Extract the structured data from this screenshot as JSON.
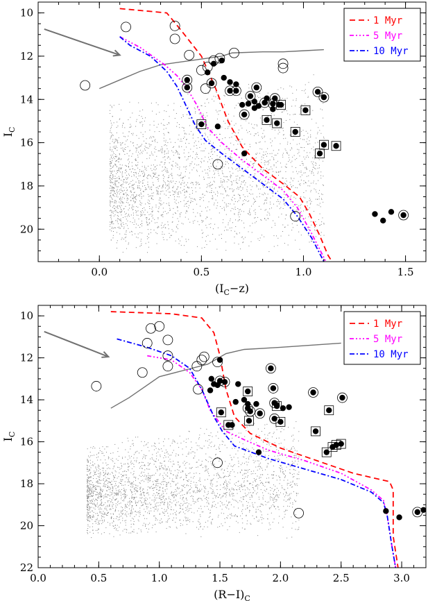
{
  "colors": {
    "model_1": "#ff0000",
    "model_5": "#ff00ff",
    "model_10": "#0000ff",
    "field": "#808080",
    "reddening": "#707070"
  },
  "chart_data": [
    {
      "type": "scatter",
      "xlabel": "(I",
      "xlabel_sub": "C",
      "xlabel_tail": "−z)",
      "ylabel": "I",
      "ylabel_sub": "C",
      "xlim": [
        -0.3,
        1.6
      ],
      "ylim": [
        21.5,
        9.5
      ],
      "xticks": [
        0.0,
        0.5,
        1.0,
        1.5
      ],
      "xtick_labels": [
        "0.0",
        "0.5",
        "1.0",
        "1.5"
      ],
      "yticks": [
        10,
        12,
        14,
        16,
        18,
        20
      ],
      "ytick_labels": [
        "10",
        "12",
        "14",
        "16",
        "18",
        "20"
      ],
      "legend_position": "top-right",
      "isochrones": [
        {
          "name": "1 Myr",
          "dash": "8,5",
          "points": [
            [
              0.1,
              9.8
            ],
            [
              0.33,
              10.0
            ],
            [
              0.4,
              10.8
            ],
            [
              0.5,
              12.0
            ],
            [
              0.57,
              13.5
            ],
            [
              0.63,
              15.0
            ],
            [
              0.7,
              16.2
            ],
            [
              0.8,
              17.2
            ],
            [
              0.9,
              17.9
            ],
            [
              0.98,
              18.5
            ],
            [
              1.03,
              19.3
            ],
            [
              1.08,
              20.3
            ],
            [
              1.12,
              21.2
            ],
            [
              1.14,
              21.5
            ]
          ]
        },
        {
          "name": "5 Myr",
          "dash": "6,3,2,3,2,3,2,3",
          "points": [
            [
              0.1,
              11.1
            ],
            [
              0.2,
              11.6
            ],
            [
              0.32,
              12.4
            ],
            [
              0.38,
              12.9
            ],
            [
              0.43,
              13.5
            ],
            [
              0.48,
              14.3
            ],
            [
              0.53,
              15.3
            ],
            [
              0.6,
              16.0
            ],
            [
              0.7,
              16.8
            ],
            [
              0.8,
              17.5
            ],
            [
              0.9,
              18.2
            ],
            [
              0.97,
              19.0
            ],
            [
              1.04,
              20.2
            ],
            [
              1.11,
              21.5
            ]
          ]
        },
        {
          "name": "10 Myr",
          "dash": "7,3,2,3",
          "points": [
            [
              0.1,
              11.1
            ],
            [
              0.15,
              11.5
            ],
            [
              0.25,
              12.0
            ],
            [
              0.33,
              12.7
            ],
            [
              0.38,
              13.4
            ],
            [
              0.42,
              14.2
            ],
            [
              0.47,
              15.2
            ],
            [
              0.52,
              15.9
            ],
            [
              0.6,
              16.5
            ],
            [
              0.7,
              17.2
            ],
            [
              0.8,
              17.9
            ],
            [
              0.9,
              18.6
            ],
            [
              0.97,
              19.4
            ],
            [
              1.04,
              20.4
            ],
            [
              1.1,
              21.5
            ]
          ]
        }
      ],
      "detection_limit": [
        [
          0.0,
          13.5
        ],
        [
          0.1,
          13.1
        ],
        [
          0.2,
          12.7
        ],
        [
          0.3,
          12.4
        ],
        [
          0.45,
          12.2
        ],
        [
          0.6,
          12.0
        ],
        [
          0.65,
          11.85
        ],
        [
          0.8,
          11.8
        ],
        [
          0.9,
          11.8
        ],
        [
          1.0,
          11.75
        ],
        [
          1.1,
          11.7
        ]
      ],
      "reddening_vector": {
        "from": [
          -0.27,
          10.75
        ],
        "to": [
          0.1,
          11.95
        ]
      },
      "field_region": {
        "x_min": 0.05,
        "x_max": 1.1,
        "y_min": 12.5,
        "y_max": 21.2
      },
      "open_circles": [
        [
          -0.07,
          13.35
        ],
        [
          0.13,
          10.65
        ],
        [
          0.37,
          10.6
        ],
        [
          0.37,
          11.2
        ],
        [
          0.44,
          11.95
        ],
        [
          0.5,
          12.65
        ],
        [
          0.53,
          12.5
        ],
        [
          0.52,
          13.5
        ],
        [
          0.56,
          12.2
        ],
        [
          0.59,
          12.1
        ],
        [
          0.66,
          11.85
        ],
        [
          0.9,
          12.35
        ],
        [
          0.9,
          12.55
        ],
        [
          0.58,
          17.0
        ],
        [
          0.96,
          19.4
        ]
      ],
      "filled_circles": [
        [
          0.56,
          12.35
        ],
        [
          0.6,
          12.2
        ],
        [
          0.53,
          12.75
        ],
        [
          0.61,
          13.0
        ],
        [
          0.64,
          13.2
        ],
        [
          0.67,
          13.3
        ],
        [
          0.7,
          14.25
        ],
        [
          0.73,
          14.2
        ],
        [
          0.76,
          14.1
        ],
        [
          0.78,
          14.3
        ],
        [
          0.76,
          14.4
        ],
        [
          0.85,
          14.45
        ],
        [
          0.82,
          13.95
        ],
        [
          0.88,
          14.25
        ],
        [
          0.58,
          15.25
        ],
        [
          0.71,
          16.5
        ],
        [
          1.35,
          19.3
        ],
        [
          1.39,
          19.6
        ],
        [
          1.43,
          19.2
        ]
      ],
      "circled_dots": [
        [
          0.43,
          13.1
        ],
        [
          0.43,
          13.45
        ],
        [
          0.55,
          13.25
        ],
        [
          0.64,
          13.6
        ],
        [
          0.67,
          13.6
        ],
        [
          0.71,
          14.7
        ],
        [
          0.74,
          13.85
        ],
        [
          0.77,
          13.45
        ],
        [
          0.81,
          14.15
        ],
        [
          0.86,
          13.95
        ],
        [
          0.85,
          14.2
        ],
        [
          1.07,
          13.65
        ],
        [
          1.1,
          13.9
        ],
        [
          1.49,
          19.35
        ]
      ],
      "boxed_dots": [
        [
          0.5,
          15.15
        ],
        [
          0.82,
          14.95
        ],
        [
          0.87,
          15.1
        ],
        [
          0.89,
          14.25
        ],
        [
          1.01,
          14.5
        ],
        [
          0.96,
          15.5
        ],
        [
          1.1,
          16.1
        ],
        [
          1.16,
          16.15
        ],
        [
          1.08,
          16.5
        ]
      ]
    },
    {
      "type": "scatter",
      "xlabel": "(R−I)",
      "xlabel_sub": "C",
      "xlabel_tail": "",
      "ylabel": "I",
      "ylabel_sub": "C",
      "xlim": [
        0.0,
        3.2
      ],
      "ylim": [
        22.0,
        9.5
      ],
      "xticks": [
        0.0,
        0.5,
        1.0,
        1.5,
        2.0,
        2.5,
        3.0
      ],
      "xtick_labels": [
        "0.0",
        "0.5",
        "1.0",
        "1.5",
        "2.0",
        "2.5",
        "3.0"
      ],
      "yticks": [
        10,
        12,
        14,
        16,
        18,
        20,
        22
      ],
      "ytick_labels": [
        "10",
        "12",
        "14",
        "16",
        "18",
        "20",
        "22"
      ],
      "legend_position": "top-right",
      "isochrones": [
        {
          "name": "1 Myr",
          "dash": "8,5",
          "points": [
            [
              0.6,
              9.8
            ],
            [
              1.1,
              9.9
            ],
            [
              1.35,
              10.1
            ],
            [
              1.45,
              10.8
            ],
            [
              1.5,
              11.9
            ],
            [
              1.55,
              13.5
            ],
            [
              1.62,
              14.8
            ],
            [
              1.75,
              15.6
            ],
            [
              2.0,
              16.3
            ],
            [
              2.3,
              16.9
            ],
            [
              2.6,
              17.5
            ],
            [
              2.9,
              17.9
            ],
            [
              2.93,
              18.3
            ],
            [
              2.93,
              20.5
            ],
            [
              2.97,
              22.0
            ]
          ]
        },
        {
          "name": "5 Myr",
          "dash": "6,3,2,3,2,3,2,3",
          "points": [
            [
              0.9,
              11.9
            ],
            [
              1.1,
              12.1
            ],
            [
              1.25,
              12.7
            ],
            [
              1.35,
              13.5
            ],
            [
              1.42,
              14.5
            ],
            [
              1.55,
              15.5
            ],
            [
              1.7,
              15.9
            ],
            [
              1.9,
              16.4
            ],
            [
              2.2,
              16.9
            ],
            [
              2.5,
              17.5
            ],
            [
              2.75,
              18.3
            ],
            [
              2.85,
              18.8
            ],
            [
              2.88,
              19.5
            ],
            [
              2.92,
              21.0
            ],
            [
              2.95,
              22.0
            ]
          ]
        },
        {
          "name": "10 Myr",
          "dash": "7,3,2,3",
          "points": [
            [
              0.65,
              11.1
            ],
            [
              0.9,
              11.5
            ],
            [
              1.1,
              11.9
            ],
            [
              1.25,
              12.5
            ],
            [
              1.35,
              13.5
            ],
            [
              1.45,
              14.8
            ],
            [
              1.52,
              15.5
            ],
            [
              1.62,
              16.2
            ],
            [
              1.9,
              16.8
            ],
            [
              2.2,
              17.3
            ],
            [
              2.5,
              17.8
            ],
            [
              2.75,
              18.4
            ],
            [
              2.85,
              18.9
            ],
            [
              2.88,
              19.5
            ],
            [
              2.92,
              21.0
            ],
            [
              2.95,
              22.0
            ]
          ]
        }
      ],
      "detection_limit": [
        [
          0.6,
          14.4
        ],
        [
          0.75,
          13.9
        ],
        [
          0.9,
          13.3
        ],
        [
          1.0,
          12.9
        ],
        [
          1.2,
          12.6
        ],
        [
          1.4,
          12.3
        ],
        [
          1.55,
          11.8
        ],
        [
          1.7,
          11.6
        ],
        [
          2.0,
          11.5
        ],
        [
          2.25,
          11.4
        ],
        [
          2.5,
          11.3
        ]
      ],
      "reddening_vector": {
        "from": [
          0.05,
          10.75
        ],
        "to": [
          0.58,
          11.95
        ]
      },
      "field_region": {
        "x_min": 0.4,
        "x_max": 2.15,
        "y_min": 14.5,
        "y_max": 20.6
      },
      "open_circles": [
        [
          0.48,
          13.35
        ],
        [
          0.86,
          12.7
        ],
        [
          0.93,
          10.6
        ],
        [
          1.0,
          10.5
        ],
        [
          0.9,
          11.3
        ],
        [
          1.07,
          11.15
        ],
        [
          1.07,
          11.9
        ],
        [
          1.07,
          12.4
        ],
        [
          1.31,
          12.4
        ],
        [
          1.32,
          13.5
        ],
        [
          1.35,
          12.1
        ],
        [
          1.37,
          11.95
        ],
        [
          1.48,
          12.2
        ],
        [
          1.48,
          17.0
        ],
        [
          2.15,
          19.4
        ]
      ],
      "filled_circles": [
        [
          1.5,
          12.1
        ],
        [
          1.43,
          13.0
        ],
        [
          1.45,
          13.25
        ],
        [
          1.48,
          13.3
        ],
        [
          1.42,
          13.55
        ],
        [
          1.65,
          13.25
        ],
        [
          1.7,
          14.0
        ],
        [
          1.73,
          14.2
        ],
        [
          1.63,
          14.1
        ],
        [
          1.8,
          14.2
        ],
        [
          1.97,
          14.25
        ],
        [
          2.02,
          14.4
        ],
        [
          2.07,
          14.35
        ],
        [
          1.6,
          15.2
        ],
        [
          1.82,
          16.5
        ],
        [
          2.87,
          19.3
        ],
        [
          2.98,
          19.6
        ],
        [
          3.18,
          19.25
        ]
      ],
      "circled_dots": [
        [
          1.5,
          13.1
        ],
        [
          1.54,
          13.15
        ],
        [
          1.73,
          14.4
        ],
        [
          1.75,
          14.55
        ],
        [
          1.83,
          14.65
        ],
        [
          1.92,
          12.5
        ],
        [
          1.94,
          13.45
        ],
        [
          1.95,
          14.15
        ],
        [
          1.95,
          14.9
        ],
        [
          2.27,
          13.65
        ],
        [
          2.51,
          13.9
        ],
        [
          3.13,
          19.35
        ]
      ],
      "boxed_dots": [
        [
          1.51,
          14.6
        ],
        [
          1.57,
          15.2
        ],
        [
          1.73,
          13.6
        ],
        [
          1.74,
          15.0
        ],
        [
          1.97,
          14.3
        ],
        [
          2.0,
          15.05
        ],
        [
          2.29,
          15.5
        ],
        [
          2.4,
          14.5
        ],
        [
          2.38,
          16.5
        ],
        [
          2.43,
          16.25
        ],
        [
          2.46,
          16.15
        ],
        [
          2.5,
          16.1
        ]
      ]
    }
  ]
}
